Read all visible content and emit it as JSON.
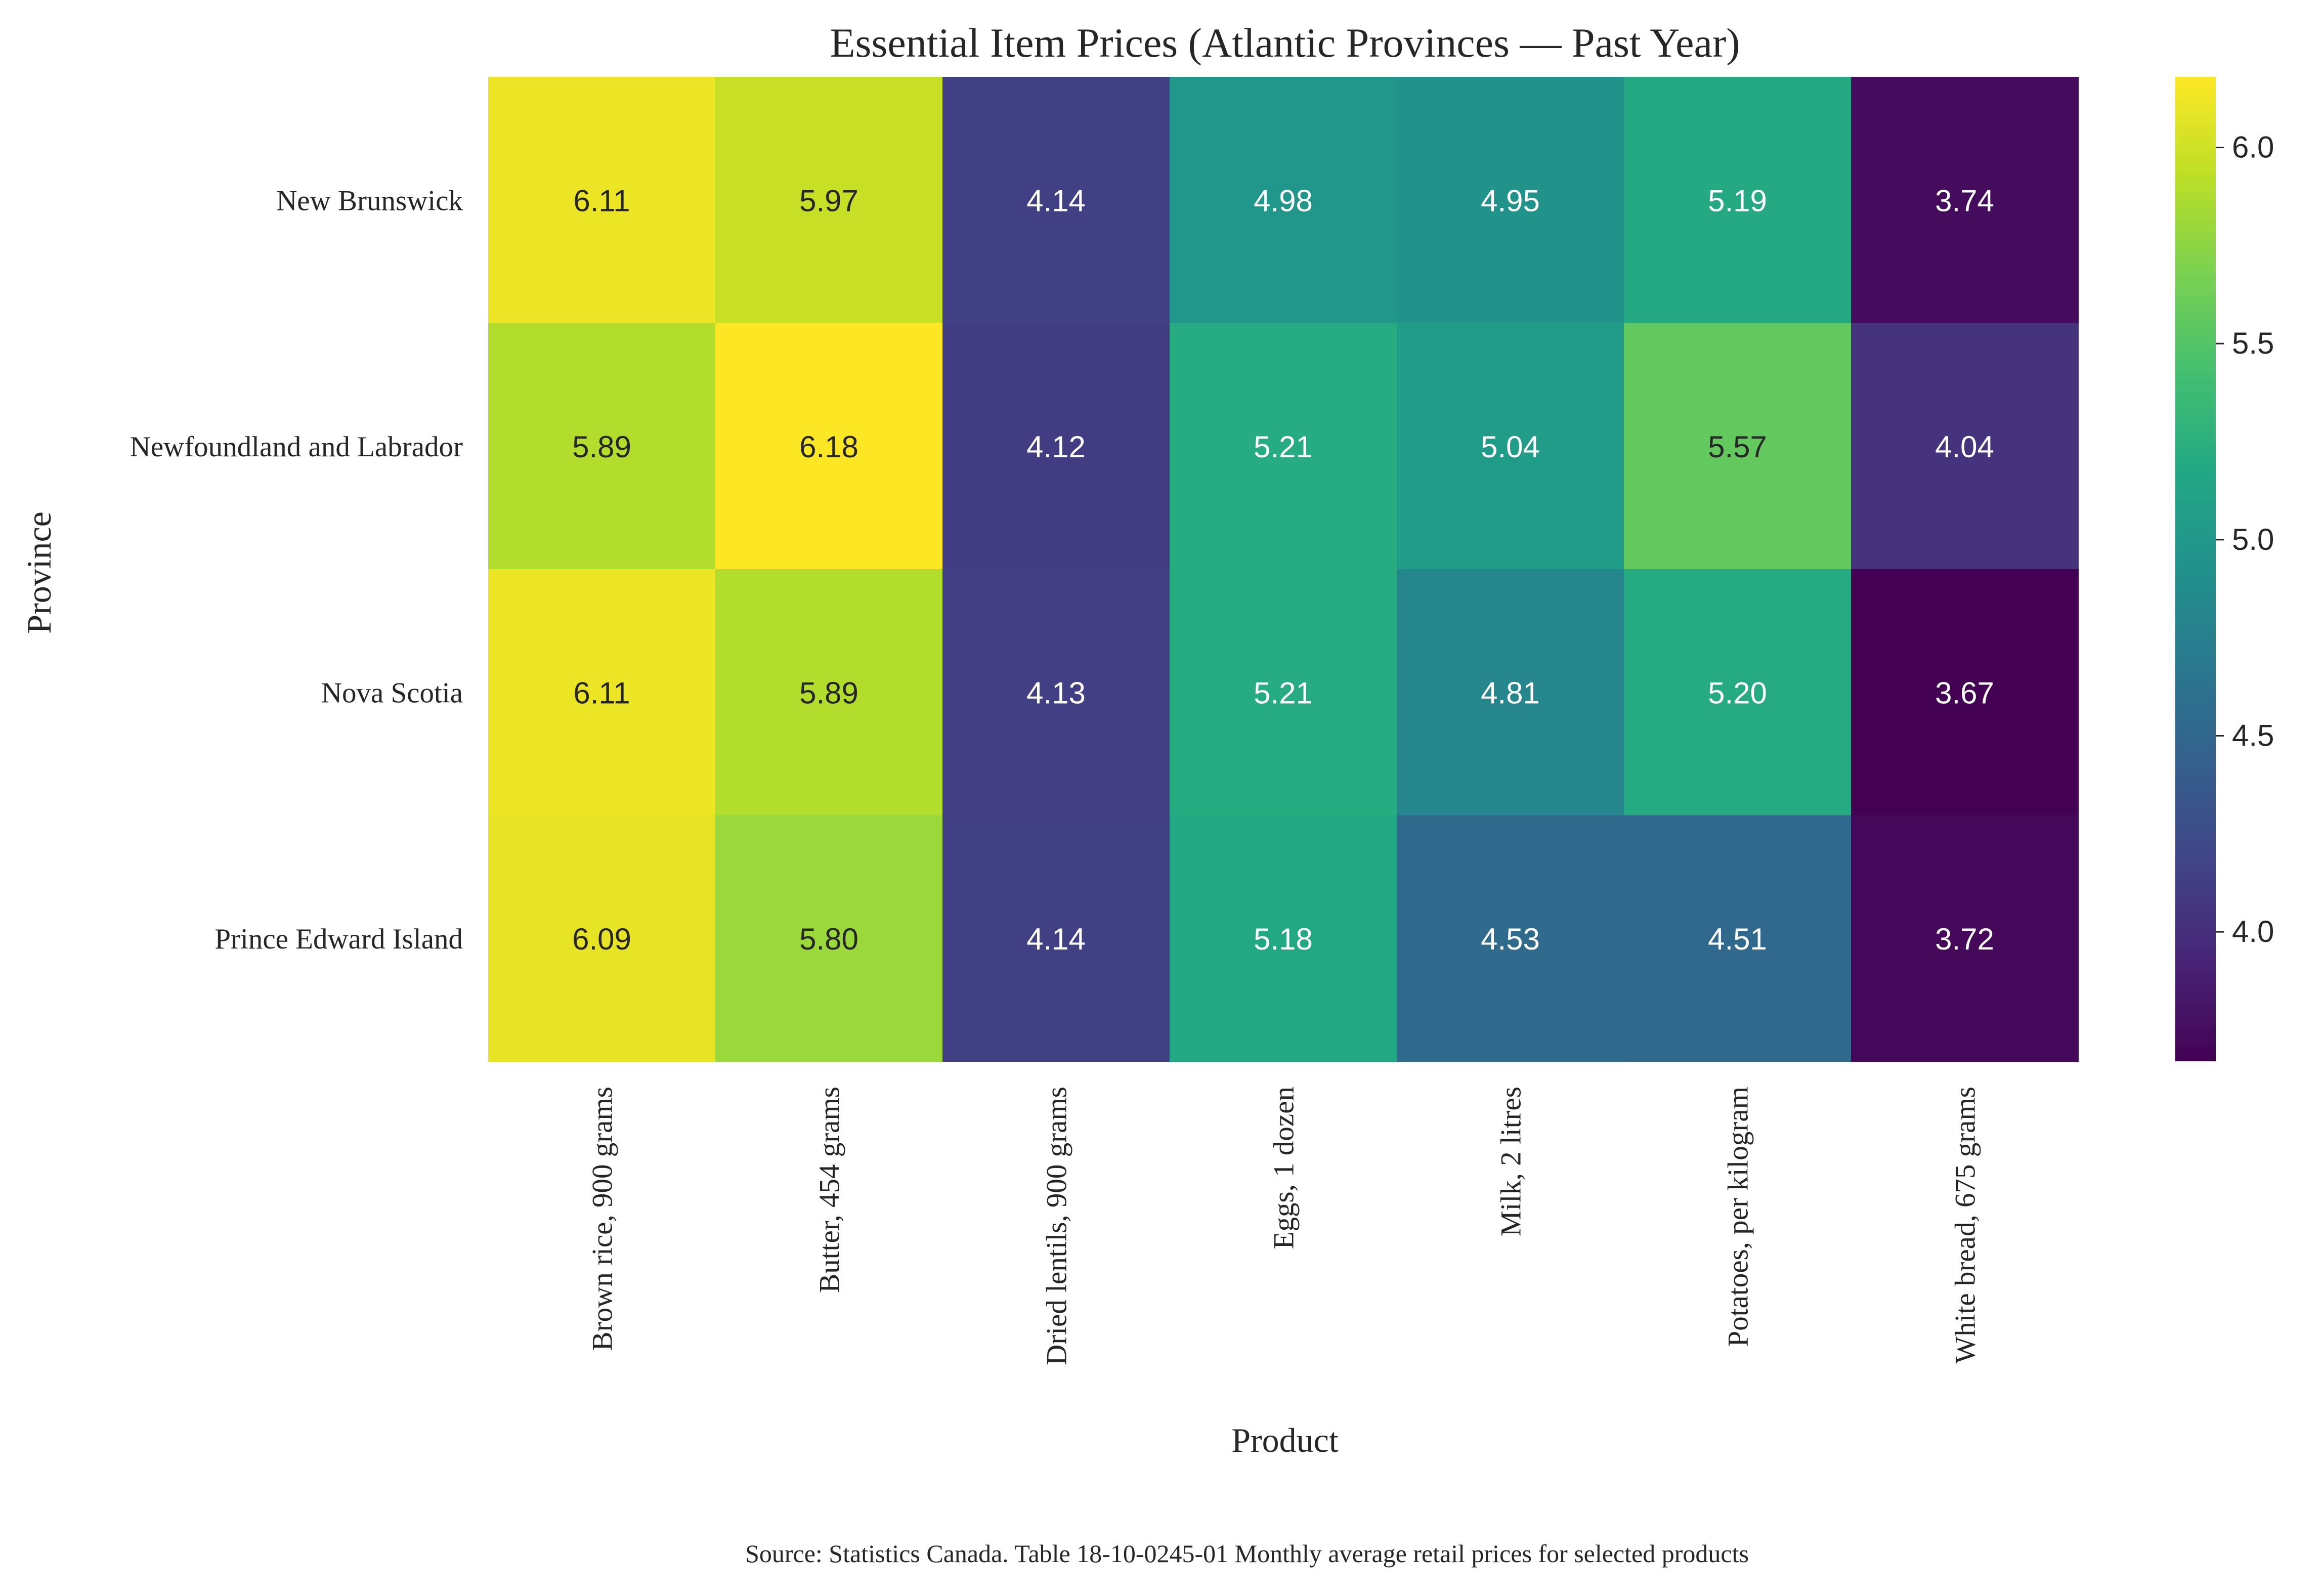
{
  "chart_data": {
    "type": "heatmap",
    "title": "Essential Item Prices (Atlantic Provinces — Past Year)",
    "xlabel": "Product",
    "ylabel": "Province",
    "caption": "Source: Statistics Canada. Table 18-10-0245-01  Monthly average retail prices for selected products",
    "x_categories": [
      "Brown rice, 900 grams",
      "Butter, 454 grams",
      "Dried lentils, 900 grams",
      "Eggs, 1 dozen",
      "Milk, 2 litres",
      "Potatoes, per kilogram",
      "White bread, 675 grams"
    ],
    "y_categories": [
      "New Brunswick",
      "Newfoundland and Labrador",
      "Nova Scotia",
      "Prince Edward Island"
    ],
    "values": [
      [
        6.11,
        5.97,
        4.14,
        4.98,
        4.95,
        5.19,
        3.74
      ],
      [
        5.89,
        6.18,
        4.12,
        5.21,
        5.04,
        5.57,
        4.04
      ],
      [
        6.11,
        5.89,
        4.13,
        5.21,
        4.81,
        5.2,
        3.67
      ],
      [
        6.09,
        5.8,
        4.14,
        5.18,
        4.53,
        4.51,
        3.72
      ]
    ],
    "value_labels": [
      [
        "6.11",
        "5.97",
        "4.14",
        "4.98",
        "4.95",
        "5.19",
        "3.74"
      ],
      [
        "5.89",
        "6.18",
        "4.12",
        "5.21",
        "5.04",
        "5.57",
        "4.04"
      ],
      [
        "6.11",
        "5.89",
        "4.13",
        "5.21",
        "4.81",
        "5.20",
        "3.67"
      ],
      [
        "6.09",
        "5.80",
        "4.14",
        "5.18",
        "4.53",
        "4.51",
        "3.72"
      ]
    ],
    "colormap": "viridis",
    "vmin": 3.67,
    "vmax": 6.18,
    "colorbar_ticks": [
      4.0,
      4.5,
      5.0,
      5.5,
      6.0
    ],
    "colorbar_tick_labels": [
      "4.0",
      "4.5",
      "5.0",
      "5.5",
      "6.0"
    ],
    "grid": false
  }
}
